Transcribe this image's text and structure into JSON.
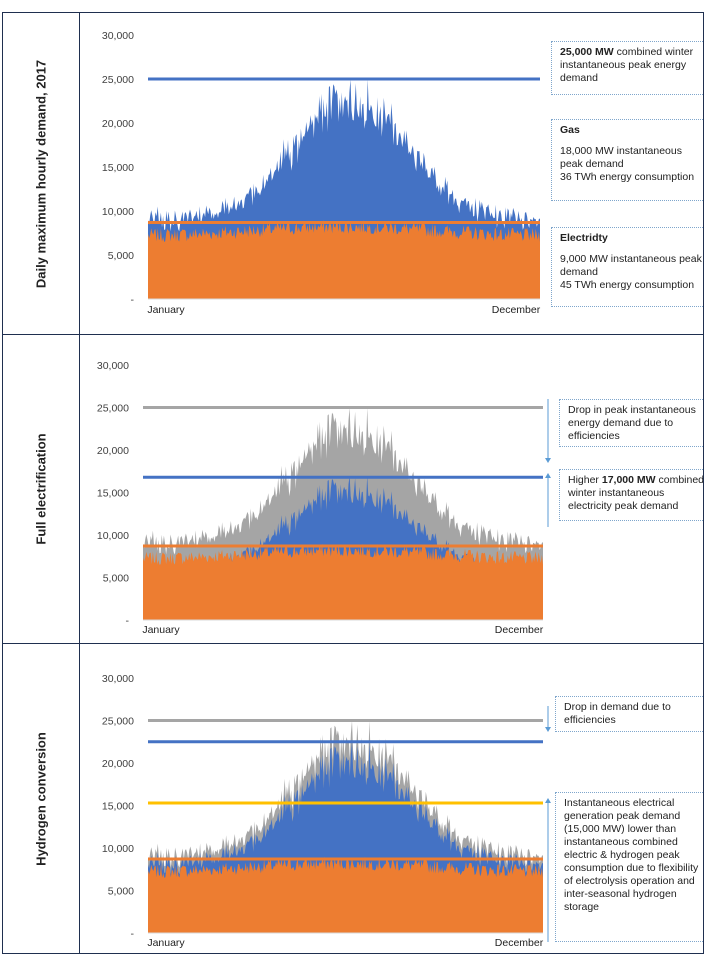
{
  "panels": [
    {
      "row_label": "Daily maximum hourly demand, 2017",
      "chart_data": {
        "type": "area",
        "xlabel": "",
        "ylabel": "",
        "x_tick_labels": [
          "January",
          "December"
        ],
        "ylim": [
          0,
          30000
        ],
        "y_ticks": [
          0,
          5000,
          10000,
          15000,
          20000,
          25000,
          30000
        ],
        "y_tick_labels": [
          "-",
          "5,000",
          "10,000",
          "15,000",
          "20,000",
          "25,000",
          "30,000"
        ],
        "gridlines": false,
        "series": [
          {
            "name": "",
            "color": "#4472c4",
            "style": "stacked-area-top",
            "profile": "combined",
            "peak": 25000
          },
          {
            "name": "",
            "color": "#ed7d31",
            "style": "area",
            "profile": "electricity",
            "peak": 9000
          }
        ],
        "reference_lines": [
          {
            "value": 25000,
            "color": "#4472c4"
          },
          {
            "value": 8700,
            "color": "#ed7d31"
          }
        ]
      },
      "callouts": [
        {
          "lines": [
            {
              "bold": "25,000 MW",
              "text": " combined winter"
            },
            {
              "text": "instantaneous peak energy"
            },
            {
              "text": "demand"
            }
          ]
        },
        {
          "lines": [
            {
              "bold": "Gas",
              "text": ""
            },
            {
              "gap": true
            },
            {
              "text": "18,000 MW instantaneous"
            },
            {
              "text": "peak demand"
            },
            {
              "text": "36 TWh energy consumption"
            }
          ]
        },
        {
          "lines": [
            {
              "bold": "Electridty",
              "text": ""
            },
            {
              "gap": true
            },
            {
              "text": "9,000 MW instantaneous peak"
            },
            {
              "text": "demand"
            },
            {
              "text": "45 TWh energy consumption"
            }
          ]
        }
      ]
    },
    {
      "row_label": "Full electrification",
      "chart_data": {
        "type": "area",
        "xlabel": "",
        "ylabel": "",
        "x_tick_labels": [
          "January",
          "December"
        ],
        "ylim": [
          0,
          30000
        ],
        "y_ticks": [
          0,
          5000,
          10000,
          15000,
          20000,
          25000,
          30000
        ],
        "y_tick_labels": [
          "-",
          "5,000",
          "10,000",
          "15,000",
          "20,000",
          "25,000",
          "30,000"
        ],
        "gridlines": false,
        "series": [
          {
            "name": "",
            "color": "#a5a5a5",
            "style": "area",
            "profile": "combined",
            "peak": 25000
          },
          {
            "name": "",
            "color": "#4472c4",
            "style": "area",
            "profile": "combined",
            "peak": 17000
          },
          {
            "name": "",
            "color": "#ed7d31",
            "style": "area",
            "profile": "electricity",
            "peak": 9000
          }
        ],
        "reference_lines": [
          {
            "value": 25000,
            "color": "#a5a5a5"
          },
          {
            "value": 16800,
            "color": "#4472c4"
          },
          {
            "value": 8700,
            "color": "#ed7d31"
          }
        ]
      },
      "callouts": [
        {
          "lines": [
            {
              "text": "Drop in peak instantaneous"
            },
            {
              "text": "energy demand due to"
            },
            {
              "text": "efficiencies"
            }
          ]
        },
        {
          "lines": [
            {
              "text": "Higher ",
              "bold": "17,000 MW",
              "after": " combined"
            },
            {
              "text": "winter instantaneous"
            },
            {
              "text": "electricity peak demand"
            }
          ]
        }
      ]
    },
    {
      "row_label": "Hydrogen conversion",
      "chart_data": {
        "type": "area",
        "xlabel": "",
        "ylabel": "",
        "x_tick_labels": [
          "January",
          "December"
        ],
        "ylim": [
          0,
          30000
        ],
        "y_ticks": [
          0,
          5000,
          10000,
          15000,
          20000,
          25000,
          30000
        ],
        "y_tick_labels": [
          "-",
          "5,000",
          "10,000",
          "15,000",
          "20,000",
          "25,000",
          "30,000"
        ],
        "gridlines": false,
        "series": [
          {
            "name": "",
            "color": "#a5a5a5",
            "style": "area",
            "profile": "combined",
            "peak": 25000
          },
          {
            "name": "",
            "color": "#4472c4",
            "style": "area",
            "profile": "combined",
            "peak": 22500
          },
          {
            "name": "",
            "color": "#ed7d31",
            "style": "area",
            "profile": "electricity",
            "peak": 9000
          }
        ],
        "reference_lines": [
          {
            "value": 25000,
            "color": "#a5a5a5"
          },
          {
            "value": 22500,
            "color": "#4472c4"
          },
          {
            "value": 15300,
            "color": "#ffc000"
          },
          {
            "value": 8700,
            "color": "#ed7d31"
          }
        ]
      },
      "callouts": [
        {
          "lines": [
            {
              "text": "Drop in demand due to"
            },
            {
              "text": "efficiencies"
            }
          ]
        },
        {
          "lines": [
            {
              "text": "Instantaneous electrical"
            },
            {
              "text": "generation peak demand"
            },
            {
              "text": "(15,000 MW) lower than"
            },
            {
              "text": "instantaneous combined"
            },
            {
              "text": "electric & hydrogen peak"
            },
            {
              "text": "consumption due to flexibility"
            },
            {
              "text": "of electrolysis operation and"
            },
            {
              "text": "inter-seasonal hydrogen"
            },
            {
              "text": "storage"
            }
          ]
        }
      ]
    }
  ],
  "colors": {
    "blue": "#4472c4",
    "orange": "#ed7d31",
    "grey": "#a5a5a5",
    "yellow": "#ffc000",
    "axis": "#d9d9d9",
    "arrow": "#5b9bd5"
  }
}
